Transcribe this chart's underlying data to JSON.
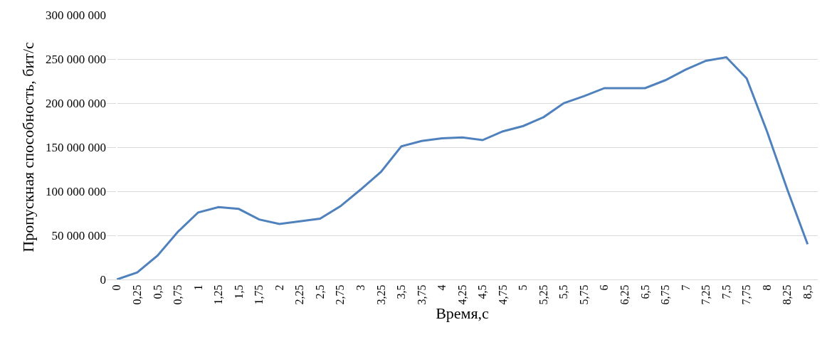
{
  "chart_data": {
    "type": "line",
    "xlabel": "Время,с",
    "ylabel": "Пропускная способность, бит/с",
    "categories": [
      "0",
      "0,25",
      "0,5",
      "0,75",
      "1",
      "1,25",
      "1,5",
      "1,75",
      "2",
      "2,25",
      "2,5",
      "2,75",
      "3",
      "3,25",
      "3,5",
      "3,75",
      "4",
      "4,25",
      "4,5",
      "4,75",
      "5",
      "5,25",
      "5,5",
      "5,75",
      "6",
      "6,25",
      "6,5",
      "6,75",
      "7",
      "7,25",
      "7,5",
      "7,75",
      "8",
      "8,25",
      "8,5"
    ],
    "series": [
      {
        "color": "#4f81bd",
        "values": [
          0,
          8000000,
          27000000,
          54000000,
          76000000,
          82000000,
          80000000,
          68000000,
          63000000,
          66000000,
          69000000,
          83000000,
          102000000,
          122000000,
          151000000,
          157000000,
          160000000,
          161000000,
          158000000,
          168000000,
          174000000,
          184000000,
          200000000,
          208000000,
          217000000,
          217000000,
          217000000,
          226000000,
          238000000,
          248000000,
          252000000,
          228000000,
          168000000,
          102000000,
          40000000
        ]
      }
    ],
    "ylim": [
      0,
      300000000
    ],
    "yticks": [
      {
        "value": 0,
        "label": "0"
      },
      {
        "value": 50000000,
        "label": "50 000 000"
      },
      {
        "value": 100000000,
        "label": "100 000 000"
      },
      {
        "value": 150000000,
        "label": "150 000 000"
      },
      {
        "value": 200000000,
        "label": "200 000 000"
      },
      {
        "value": 250000000,
        "label": "250 000 000"
      },
      {
        "value": 300000000,
        "label": "300 000 000"
      }
    ],
    "grid": "y",
    "marker": "none",
    "line_style": "solid"
  }
}
